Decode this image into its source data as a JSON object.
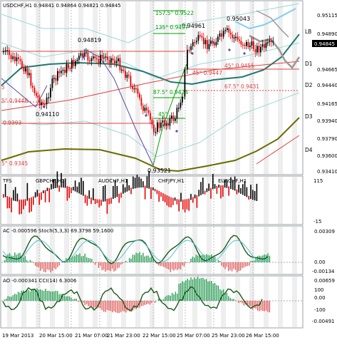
{
  "colors": {
    "background": "#ffffff",
    "panel_border": "#9aa0a6",
    "grid": "#d8d8d8",
    "candle_bull": "#000000",
    "candle_bear": "#e60000",
    "ma_teal": "#1f7a70",
    "ma_olive": "#6b6b00",
    "ma_light": "#9ad8d8",
    "forecast_gray": "#9a9a9a",
    "forecast_blue": "#7ecff0",
    "gann_green": "#00a000",
    "gann_red": "#e04040",
    "fractal_purple": "#5b4ba0",
    "price_tag_bg": "#000000",
    "price_tag_fg": "#ffffff"
  },
  "main": {
    "title": "USDCHF,H1  0.95 0.95 0.95 0.95",
    "title_exact": "USDCHF,H1  0.94841  0.94864  0.94821  0.94845",
    "current_price": "0.94845",
    "price_axis": [
      "0.95115",
      "0.94890",
      "0.94665",
      "0.94440",
      "0.94165",
      "0.93940",
      "0.93790",
      "0.93600",
      "0.93410"
    ],
    "level_labels": [
      "LB",
      "D1",
      "D2",
      "D3",
      "D4"
    ],
    "price_labels": [
      {
        "text": "0.94819"
      },
      {
        "text": "0.94961"
      },
      {
        "text": "0.95043"
      },
      {
        "text": "0.94110"
      },
      {
        "text": "0.93521"
      }
    ],
    "gann_labels": [
      {
        "text": "157.5° 0.9522"
      },
      {
        "text": "135° 0.9497"
      },
      {
        "text": "45° 0.9447"
      },
      {
        "text": "45° 0.9455"
      },
      {
        "text": "87.5° 0.9424"
      },
      {
        "text": "67.5° 0.9431"
      },
      {
        "text": "45°"
      },
      {
        "text": "5° 0.9448"
      },
      {
        "text": "0.9393"
      },
      {
        "text": "5° 0.9345"
      },
      {
        "text": "5"
      }
    ]
  },
  "tfs": {
    "title": "TFS",
    "symbols": [
      "GBPCHF,H1",
      "AUDCHF,H1",
      "CHFJPY,H1",
      "EURCHF,H1"
    ],
    "axis": [
      "115",
      "-15"
    ]
  },
  "ac": {
    "title": "AC -0.000596  Stoch(5,3,3) 69.3798 59.1600",
    "axis": [
      "0.00309",
      "0.00",
      "-0.00134"
    ]
  },
  "ao": {
    "title": "AO -0.000341  CCI(14) 6.3006",
    "axis": [
      "0.00659",
      "100",
      "0.00",
      "-100",
      "-0.00491"
    ]
  },
  "time_axis": [
    "19 Mar 2013",
    "20 Mar 15:00",
    "21 Mar 07:00",
    "21 Mar 23:00",
    "22 Mar 15:00",
    "25 Mar 07:00",
    "25 Mar 23:00",
    "26 Mar 15:00"
  ]
}
